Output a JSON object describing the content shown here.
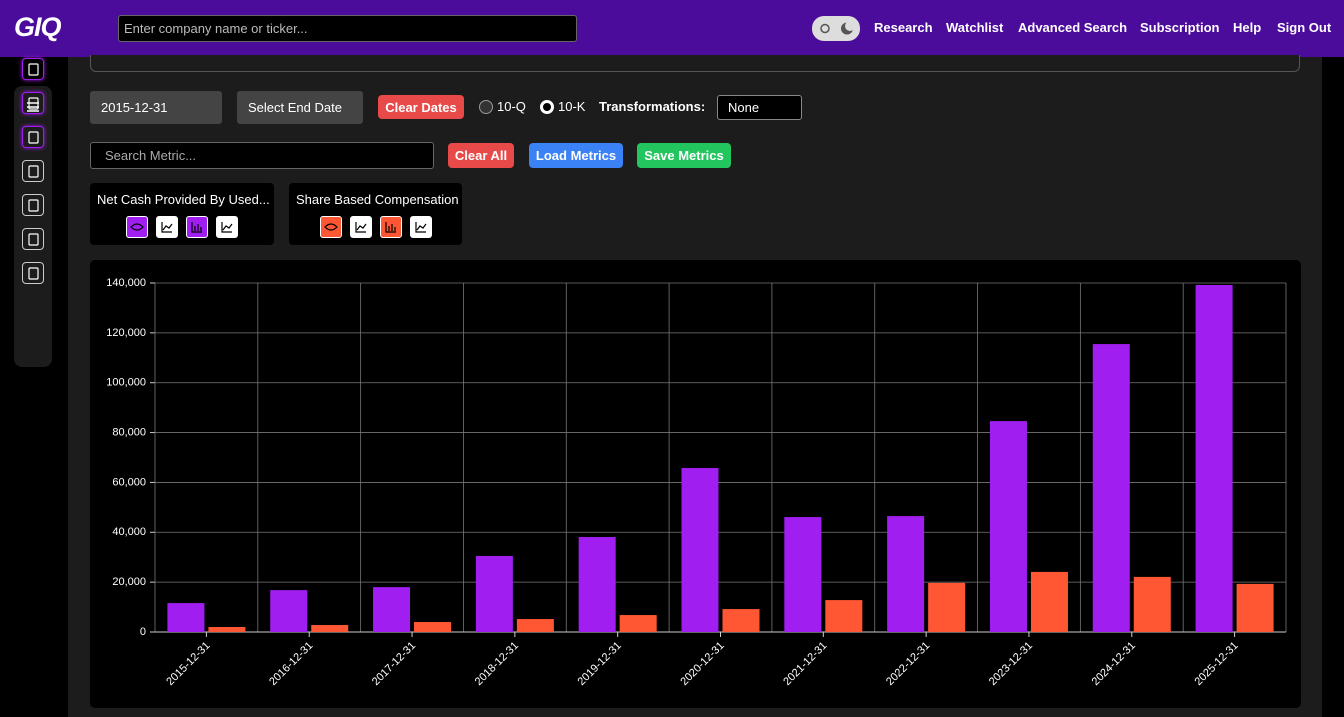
{
  "header": {
    "logo": "GIQ",
    "search_placeholder": "Enter company name or ticker...",
    "nav": [
      "Research",
      "Watchlist",
      "Advanced Search",
      "Subscription",
      "Help",
      "Sign Out"
    ]
  },
  "controls": {
    "start_date": "2015-12-31",
    "end_date": "Select End Date",
    "clear_dates": "Clear Dates",
    "filings": [
      "10-Q",
      "10-K"
    ],
    "transformations_label": "Transformations:",
    "transformation": "None",
    "metric_search_placeholder": "Search Metric...",
    "clear_all": "Clear All",
    "load_metrics": "Load Metrics",
    "save_metrics": "Save Metrics"
  },
  "chart_data": {
    "type": "bar",
    "categories": [
      "2015-12-31",
      "2016-12-31",
      "2017-12-31",
      "2018-12-31",
      "2019-12-31",
      "2020-12-31",
      "2021-12-31",
      "2022-12-31",
      "2023-12-31",
      "2024-12-31",
      "2025-12-31"
    ],
    "series": [
      {
        "name": "Net Cash Provided By Used...",
        "color": "#a01ff0",
        "values": [
          11600,
          16800,
          18000,
          30500,
          38100,
          65800,
          46100,
          46500,
          84600,
          115500,
          139200
        ]
      },
      {
        "name": "Share Based Compensation",
        "color": "#ff5733",
        "values": [
          2000,
          2800,
          4000,
          5200,
          6800,
          9200,
          12800,
          19700,
          24100,
          22100,
          19300
        ]
      }
    ],
    "ylim": [
      0,
      140000
    ],
    "yticks": [
      0,
      {
        "value": 20000,
        "label": "20,000"
      },
      {
        "value": 40000,
        "label": "40,000"
      },
      {
        "value": 60000,
        "label": "60,000"
      },
      {
        "value": 80000,
        "label": "80,000"
      },
      {
        "value": 100000,
        "label": "100,000"
      },
      {
        "value": 120000,
        "label": "120,000"
      },
      {
        "value": 140000,
        "label": "140,000"
      }
    ],
    "grid": true
  }
}
